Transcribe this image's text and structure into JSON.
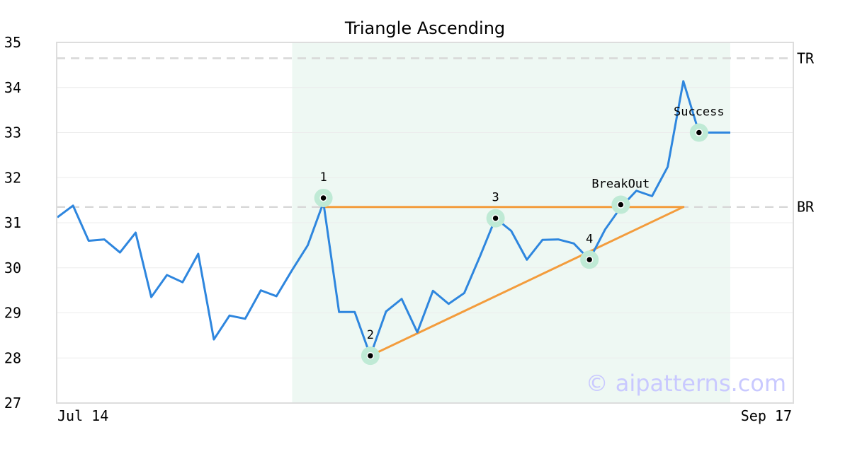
{
  "chart_data": {
    "type": "line",
    "title": "Triangle Ascending",
    "xlabel": "",
    "ylabel": "",
    "x_tick_labels": [
      "Jul 14",
      "Sep 17"
    ],
    "y_ticks": [
      27,
      28,
      29,
      30,
      31,
      32,
      33,
      34,
      35
    ],
    "ylim": [
      27,
      35
    ],
    "grid": true,
    "series": [
      {
        "color": "#2e86de",
        "values": [
          31.12,
          31.38,
          30.6,
          30.63,
          30.34,
          30.78,
          29.35,
          29.84,
          29.68,
          30.31,
          28.41,
          28.94,
          28.87,
          29.5,
          29.37,
          29.95,
          30.5,
          31.45,
          29.02,
          29.02,
          28.05,
          29.03,
          29.31,
          28.57,
          29.49,
          29.2,
          29.44,
          30.25,
          31.1,
          30.82,
          30.18,
          30.62,
          30.63,
          30.54,
          30.18,
          30.85,
          31.34,
          31.71,
          31.59,
          32.24,
          34.14,
          33.0,
          33.0,
          33.0
        ]
      }
    ],
    "pattern_region": {
      "from_index": 15,
      "to_index": 43,
      "color": "#eef8f3"
    },
    "reference_lines": [
      {
        "label": "TR",
        "y": 34.65,
        "color": "#d8d8d8"
      },
      {
        "label": "BR",
        "y": 31.35,
        "color": "#d8d8d8"
      }
    ],
    "trend_lines": [
      {
        "from": {
          "index": 17,
          "y": 31.35
        },
        "to": {
          "index": 40,
          "y": 31.35
        },
        "color": "#f39c3c"
      },
      {
        "from": {
          "index": 20,
          "y": 28.05
        },
        "to": {
          "index": 40,
          "y": 31.35
        },
        "color": "#f39c3c"
      }
    ],
    "annotations": [
      {
        "label": "1",
        "index": 17,
        "y": 31.55
      },
      {
        "label": "2",
        "index": 20,
        "y": 28.05
      },
      {
        "label": "3",
        "index": 28,
        "y": 31.1
      },
      {
        "label": "4",
        "index": 34,
        "y": 30.18
      },
      {
        "label": "BreakOut",
        "index": 36,
        "y": 31.4
      },
      {
        "label": "Success",
        "index": 41,
        "y": 33.0
      }
    ],
    "marker_color": "#bfead5",
    "watermark": "© aipatterns.com"
  }
}
